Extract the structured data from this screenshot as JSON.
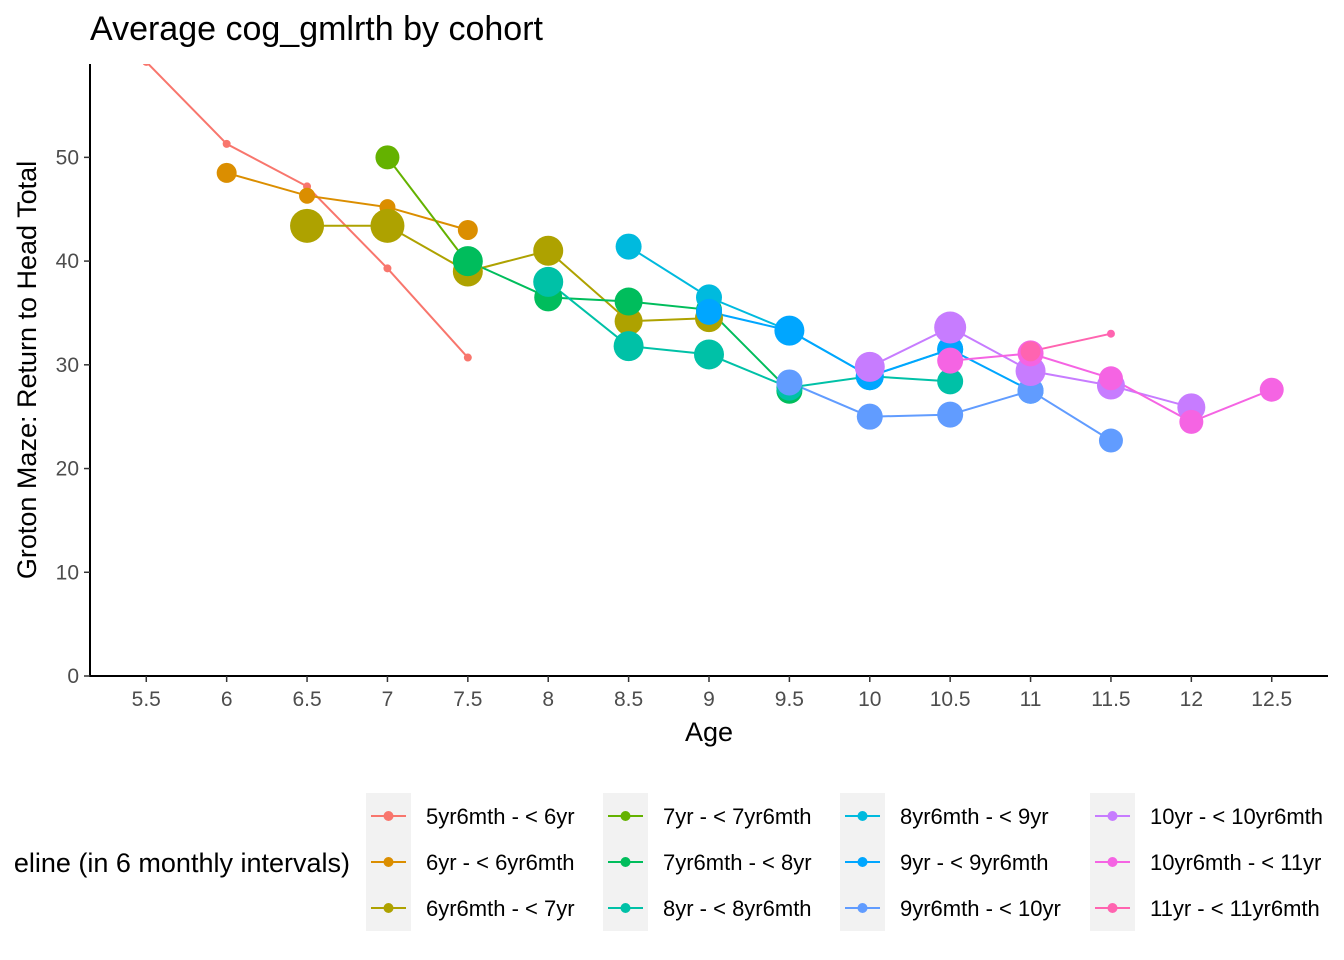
{
  "chart_data": {
    "type": "line",
    "title": "Average cog_gmlrth by cohort",
    "xlabel": "Age",
    "ylabel": "Groton Maze: Return to Head Total",
    "xlim": [
      5.15,
      12.85
    ],
    "ylim": [
      0,
      59
    ],
    "x_ticks": [
      5.5,
      6,
      6.5,
      7,
      7.5,
      8,
      8.5,
      9,
      9.5,
      10,
      10.5,
      11,
      11.5,
      12,
      12.5
    ],
    "y_ticks": [
      0,
      10,
      20,
      30,
      40,
      50
    ],
    "grid": false,
    "legend_position": "bottom",
    "legend_title": "eline (in 6 monthly intervals)",
    "series": [
      {
        "name": "5yr6mth - < 6yr",
        "color": "#F8766D",
        "x": [
          5.5,
          6,
          6.5,
          7,
          7.5
        ],
        "y": [
          59.2,
          51.3,
          47.2,
          39.3,
          30.7
        ],
        "sizes": [
          4,
          4,
          4,
          4,
          4
        ]
      },
      {
        "name": "6yr - < 6yr6mth",
        "color": "#DB8E00",
        "x": [
          6,
          6.5,
          7,
          7.5
        ],
        "y": [
          48.5,
          46.3,
          45.2,
          43
        ],
        "sizes": [
          10,
          8,
          8,
          10
        ]
      },
      {
        "name": "6yr6mth - < 7yr",
        "color": "#AEA200",
        "x": [
          6.5,
          7,
          7.5,
          8,
          8.5,
          9
        ],
        "y": [
          43.4,
          43.4,
          39,
          41,
          34.2,
          34.5
        ],
        "sizes": [
          17,
          17,
          15,
          15,
          14,
          14
        ]
      },
      {
        "name": "7yr - < 7yr6mth",
        "color": "#64B200",
        "x": [
          7,
          7.5
        ],
        "y": [
          50,
          39.8
        ],
        "sizes": [
          12,
          13
        ]
      },
      {
        "name": "7yr6mth - < 8yr",
        "color": "#00BD5C",
        "x": [
          7.5,
          8,
          8.5,
          9,
          9.5
        ],
        "y": [
          40,
          36.5,
          36.1,
          35.3,
          27.5
        ],
        "sizes": [
          15,
          14,
          14,
          13,
          13
        ]
      },
      {
        "name": "8yr - < 8yr6mth",
        "color": "#00C1A7",
        "x": [
          8,
          8.5,
          9,
          9.5,
          10,
          10.5
        ],
        "y": [
          38,
          31.8,
          31,
          27.8,
          28.9,
          28.4
        ],
        "sizes": [
          15,
          15,
          15,
          13,
          13,
          13
        ]
      },
      {
        "name": "8yr6mth - < 9yr",
        "color": "#00BADE",
        "x": [
          8.5,
          9,
          9.5,
          10,
          10.5
        ],
        "y": [
          41.4,
          36.5,
          33.3,
          28.9,
          31.5
        ],
        "sizes": [
          13,
          13,
          13,
          14,
          13
        ]
      },
      {
        "name": "9yr - < 9yr6mth",
        "color": "#00A6FF",
        "x": [
          9,
          9.5,
          10,
          10.5,
          11
        ],
        "y": [
          35.1,
          33.3,
          28.9,
          31.5,
          27.5
        ],
        "sizes": [
          13,
          15,
          14,
          13,
          13
        ]
      },
      {
        "name": "9yr6mth - < 10yr",
        "color": "#619CFF",
        "x": [
          9.5,
          10,
          10.5,
          11,
          11.5
        ],
        "y": [
          28.3,
          25,
          25.2,
          27.5,
          22.7
        ],
        "sizes": [
          13,
          13,
          13,
          13,
          12
        ]
      },
      {
        "name": "10yr - < 10yr6mth",
        "color": "#C77CFF",
        "x": [
          10,
          10.5,
          11,
          11.5,
          12
        ],
        "y": [
          29.8,
          33.6,
          29.4,
          28,
          25.9
        ],
        "sizes": [
          15,
          16,
          15,
          14,
          14
        ]
      },
      {
        "name": "10yr6mth - < 11yr",
        "color": "#F564E3",
        "x": [
          10.5,
          11,
          11.5,
          12,
          12.5
        ],
        "y": [
          30.4,
          31.1,
          28.7,
          24.5,
          27.6
        ],
        "sizes": [
          13,
          13,
          12,
          12,
          12
        ]
      },
      {
        "name": "11yr - < 11yr6mth",
        "color": "#FF64B0",
        "x": [
          11,
          11.5
        ],
        "y": [
          31.3,
          33
        ],
        "sizes": [
          10,
          4
        ]
      }
    ]
  }
}
